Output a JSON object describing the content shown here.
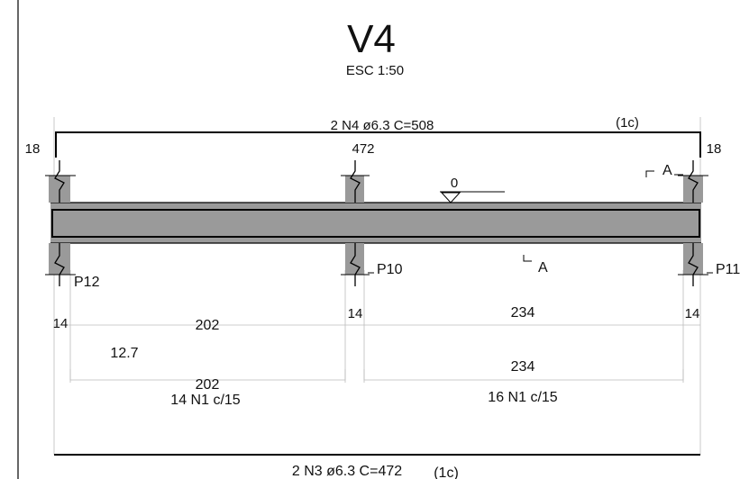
{
  "drawing": {
    "title": "V4",
    "scale": "ESC 1:50"
  },
  "top_bar": {
    "label": "2 N4 ø6.3 C=508",
    "layers": "(1c)",
    "hook_left": "18",
    "hook_right": "18",
    "mid_length": "472"
  },
  "level": {
    "label": "0"
  },
  "section": {
    "left": "A",
    "right": "A"
  },
  "supports": {
    "left": "P12",
    "middle": "P10",
    "right": "P11"
  },
  "dimensions": {
    "s1": "14",
    "span1": "202",
    "s2": "14",
    "span2": "234",
    "s3": "14"
  },
  "stirrups": {
    "spacing_left": "12.7",
    "left_len": "202",
    "left_label": "14 N1 c/15",
    "right_len": "234",
    "right_label": "16 N1 c/15"
  },
  "bottom_bar": {
    "label": "2 N3 ø6.3 C=472",
    "layers": "(1c)"
  }
}
